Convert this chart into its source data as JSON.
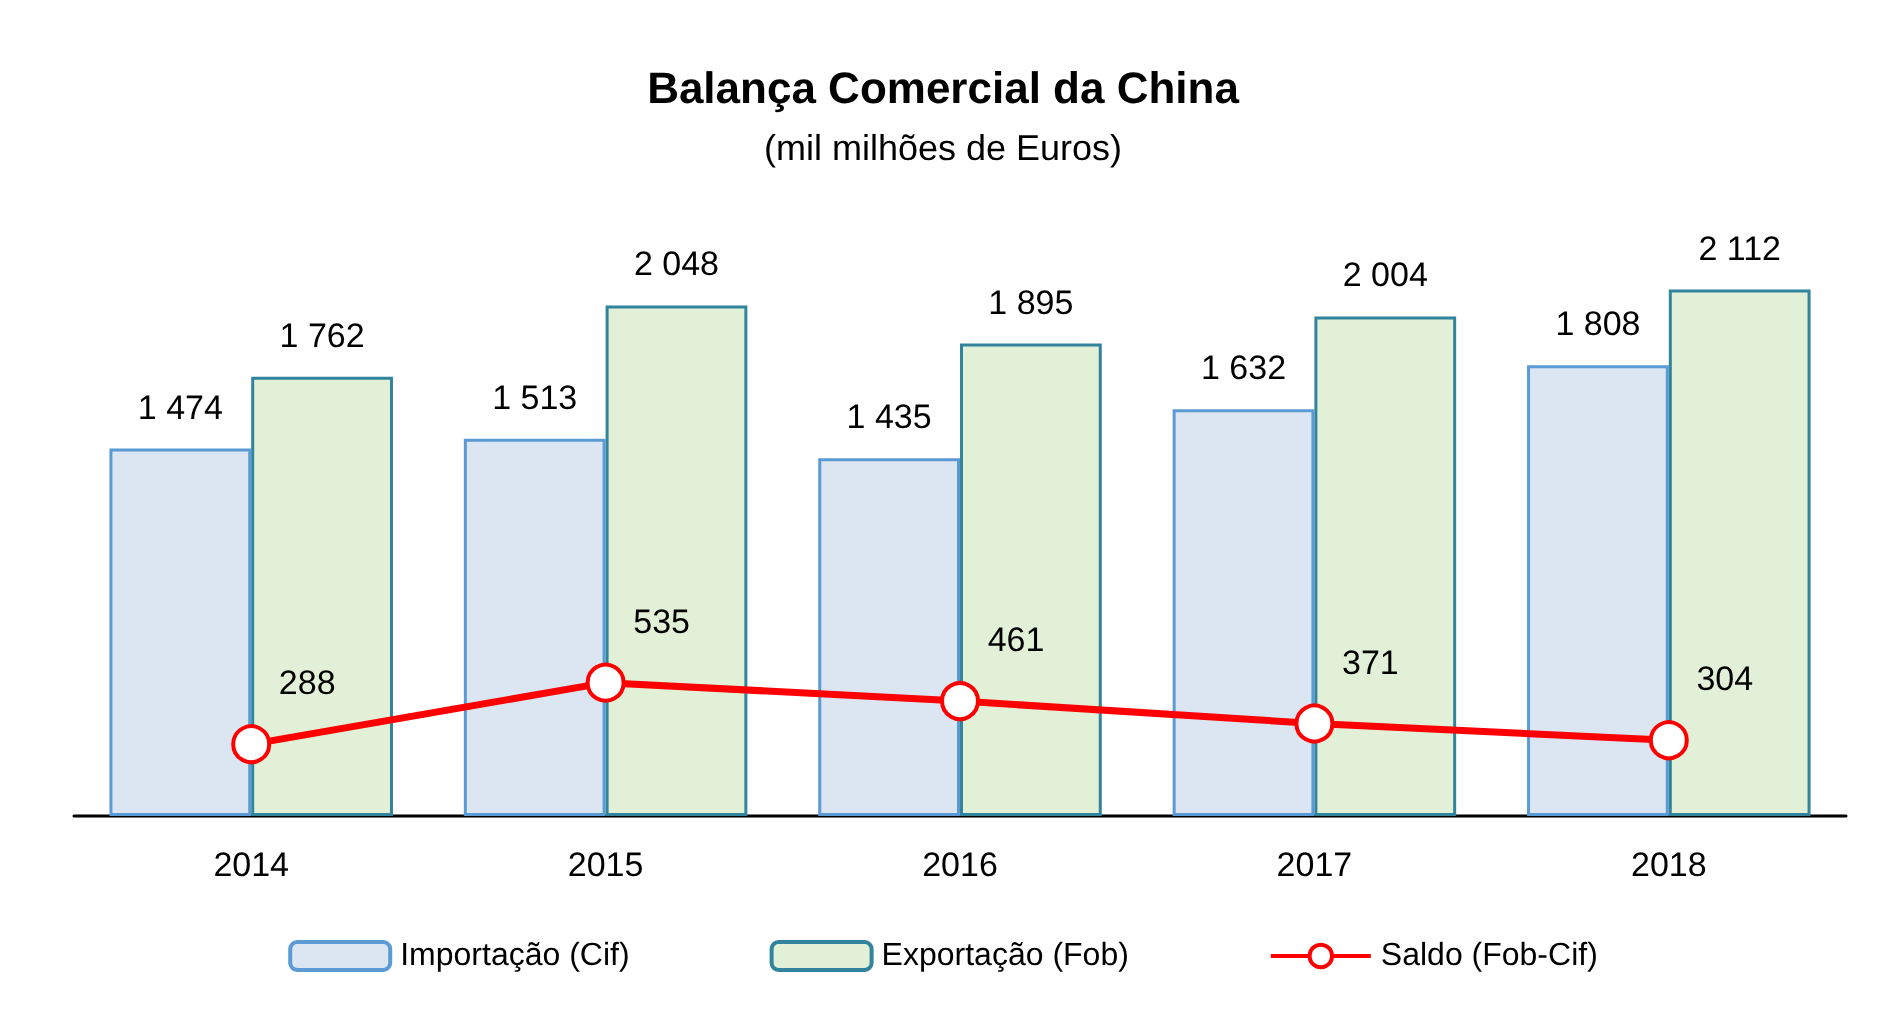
{
  "chart_data": {
    "type": "bar",
    "title": "Balança Comercial da China",
    "subtitle": "(mil milhões de Euros)",
    "categories": [
      "2014",
      "2015",
      "2016",
      "2017",
      "2018"
    ],
    "series": [
      {
        "name": "Importação (Cif)",
        "color": "#dce6f2",
        "values": [
          1474,
          1513,
          1435,
          1632,
          1808
        ]
      },
      {
        "name": "Exportação (Fob)",
        "color": "#e3f0d8",
        "values": [
          1762,
          2048,
          1895,
          2004,
          2112
        ]
      },
      {
        "name": "Saldo (Fob-Cif)",
        "type": "line",
        "color": "#ff0000",
        "values": [
          288,
          535,
          461,
          371,
          304
        ],
        "marker": "circle"
      }
    ],
    "data_labels": true,
    "legend": "bottom"
  }
}
